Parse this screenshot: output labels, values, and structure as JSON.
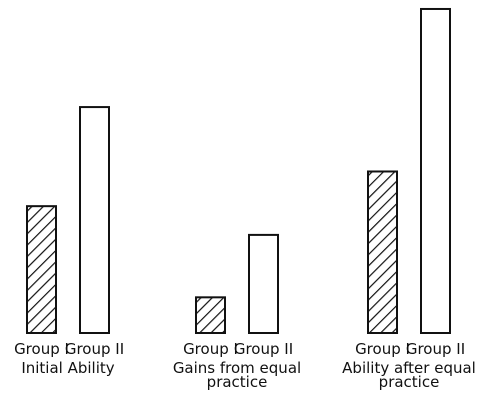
{
  "chart_data": {
    "type": "bar",
    "title": "",
    "xlabel": "",
    "ylabel": "",
    "ylim": [
      0,
      330
    ],
    "grid": false,
    "legend": "none",
    "groups": [
      {
        "caption_lines": [
          "Initial Ability"
        ],
        "bars": [
          {
            "label": "Group I",
            "value": 128,
            "pattern": "hatched"
          },
          {
            "label": "Group II",
            "value": 228,
            "pattern": "plain"
          }
        ]
      },
      {
        "caption_lines": [
          "Gains from equal",
          "practice"
        ],
        "bars": [
          {
            "label": "Group I",
            "value": 36,
            "pattern": "hatched"
          },
          {
            "label": "Group II",
            "value": 99,
            "pattern": "plain"
          }
        ]
      },
      {
        "caption_lines": [
          "Ability after equal",
          "practice"
        ],
        "bars": [
          {
            "label": "Group I",
            "value": 163,
            "pattern": "hatched"
          },
          {
            "label": "Group II",
            "value": 327,
            "pattern": "plain"
          }
        ]
      }
    ]
  },
  "colors": {
    "ink": "#111111",
    "background": "#ffffff"
  }
}
